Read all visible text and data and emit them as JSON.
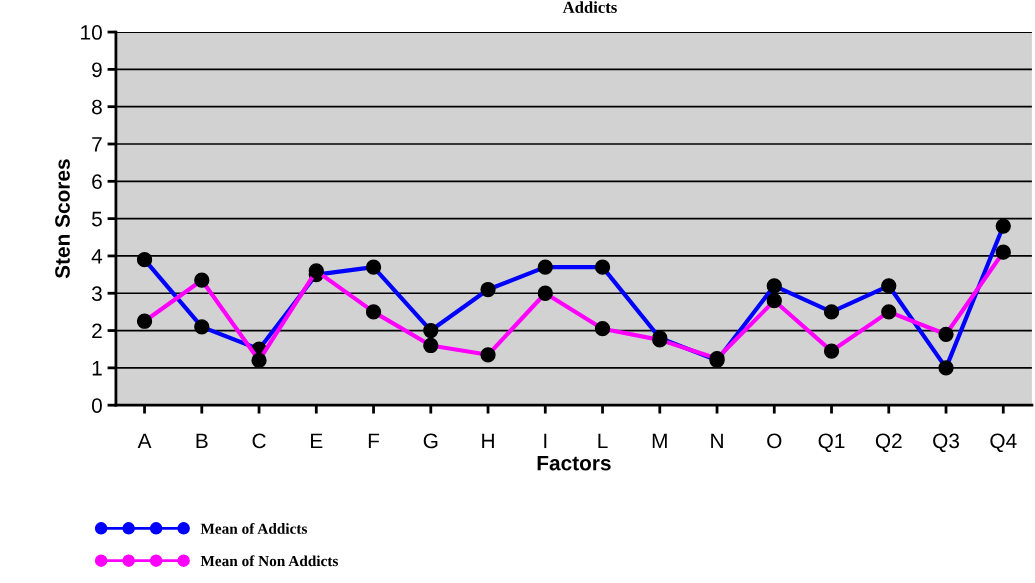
{
  "chart_data": {
    "type": "line",
    "title": "Addicts",
    "xlabel": "Factors",
    "ylabel": "Sten Scores",
    "categories": [
      "A",
      "B",
      "C",
      "E",
      "F",
      "G",
      "H",
      "I",
      "L",
      "M",
      "N",
      "O",
      "Q1",
      "Q2",
      "Q3",
      "Q4"
    ],
    "series": [
      {
        "name": "Mean of Addicts",
        "color": "#0000ff",
        "values": [
          3.9,
          2.1,
          1.5,
          3.5,
          3.7,
          2.0,
          3.1,
          3.7,
          3.7,
          1.8,
          1.2,
          3.2,
          2.5,
          3.2,
          1.0,
          4.8
        ]
      },
      {
        "name": "Mean of Non Addicts",
        "color": "#ff00ff",
        "values": [
          2.25,
          3.35,
          1.2,
          3.6,
          2.5,
          1.6,
          1.35,
          3.0,
          2.05,
          1.75,
          1.25,
          2.8,
          1.45,
          2.5,
          1.9,
          4.1
        ]
      }
    ],
    "ylim": [
      0,
      10
    ],
    "yticks": [
      0,
      1,
      2,
      3,
      4,
      5,
      6,
      7,
      8,
      9,
      10
    ],
    "grid": "y",
    "legend": "bottom left",
    "marker": "circle",
    "line_style": "solid"
  }
}
